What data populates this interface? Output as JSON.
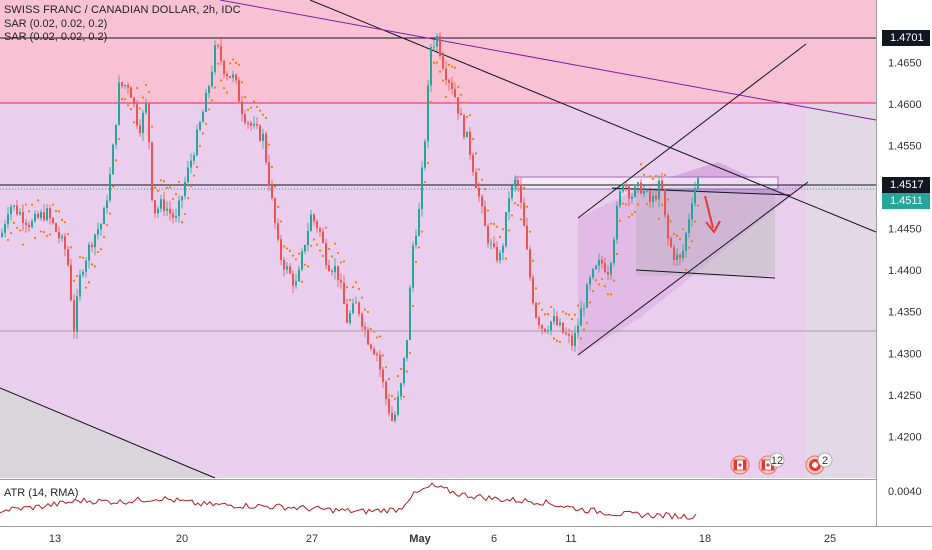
{
  "header": {
    "title": "SWISS FRANC / CANADIAN DOLLAR, 2h, IDC",
    "indicators": [
      "SAR (0.02, 0.02, 0.2)",
      "SAR (0.02, 0.02, 0.2)"
    ]
  },
  "atr": {
    "label": "ATR (14, RMA)",
    "axis_label": "0.0040",
    "color": "#b71c1c"
  },
  "price_badges": [
    {
      "text": "1.4701",
      "bg": "#131722",
      "fg": "#ffffff"
    },
    {
      "text": "1.4517",
      "bg": "#131722",
      "fg": "#ffffff"
    },
    {
      "text": "1.4511",
      "bg": "#26a69a",
      "fg": "#ffffff"
    }
  ],
  "chart_data": {
    "type": "candlestick",
    "title": "SWISS FRANC / CANADIAN DOLLAR, 2h, IDC",
    "y_ticks": [
      "1.4650",
      "1.4600",
      "1.4550",
      "1.4450",
      "1.4400",
      "1.4350",
      "1.4300",
      "1.4250",
      "1.4200"
    ],
    "x_ticks": [
      "13",
      "20",
      "27",
      "May",
      "6",
      "11",
      "18",
      "25"
    ],
    "ylim": [
      1.415,
      1.4725
    ],
    "colors": {
      "up": "#26a69a",
      "down": "#ef5350",
      "sar": "#f57c00",
      "zone_pink": "#f48fb1",
      "zone_purple": "#ce93d8",
      "drawing": "#131722"
    },
    "annotations": [
      "Horizontal line 1.4701",
      "Horizontal line 1.4517",
      "Rising channel",
      "Descending trendlines",
      "Red down arrow",
      "Resistance rectangle"
    ],
    "event_badges": [
      {
        "label": "12"
      },
      {
        "label": "2"
      }
    ],
    "price_path": [
      {
        "x": 0,
        "y": 1.444
      },
      {
        "x": 8,
        "y": 1.448
      },
      {
        "x": 18,
        "y": 1.447
      },
      {
        "x": 30,
        "y": 1.4455
      },
      {
        "x": 45,
        "y": 1.447
      },
      {
        "x": 58,
        "y": 1.444
      },
      {
        "x": 66,
        "y": 1.442
      },
      {
        "x": 73,
        "y": 1.433
      },
      {
        "x": 80,
        "y": 1.44
      },
      {
        "x": 92,
        "y": 1.444
      },
      {
        "x": 102,
        "y": 1.446
      },
      {
        "x": 110,
        "y": 1.452
      },
      {
        "x": 118,
        "y": 1.462
      },
      {
        "x": 128,
        "y": 1.4625
      },
      {
        "x": 138,
        "y": 1.457
      },
      {
        "x": 146,
        "y": 1.46
      },
      {
        "x": 152,
        "y": 1.447
      },
      {
        "x": 162,
        "y": 1.448
      },
      {
        "x": 175,
        "y": 1.446
      },
      {
        "x": 185,
        "y": 1.451
      },
      {
        "x": 196,
        "y": 1.456
      },
      {
        "x": 206,
        "y": 1.461
      },
      {
        "x": 215,
        "y": 1.467
      },
      {
        "x": 224,
        "y": 1.464
      },
      {
        "x": 233,
        "y": 1.463
      },
      {
        "x": 242,
        "y": 1.459
      },
      {
        "x": 252,
        "y": 1.457
      },
      {
        "x": 262,
        "y": 1.456
      },
      {
        "x": 270,
        "y": 1.449
      },
      {
        "x": 278,
        "y": 1.442
      },
      {
        "x": 286,
        "y": 1.44
      },
      {
        "x": 296,
        "y": 1.438
      },
      {
        "x": 303,
        "y": 1.443
      },
      {
        "x": 310,
        "y": 1.4465
      },
      {
        "x": 318,
        "y": 1.445
      },
      {
        "x": 326,
        "y": 1.441
      },
      {
        "x": 336,
        "y": 1.44
      },
      {
        "x": 346,
        "y": 1.434
      },
      {
        "x": 356,
        "y": 1.436
      },
      {
        "x": 366,
        "y": 1.432
      },
      {
        "x": 376,
        "y": 1.43
      },
      {
        "x": 384,
        "y": 1.425
      },
      {
        "x": 392,
        "y": 1.4215
      },
      {
        "x": 400,
        "y": 1.426
      },
      {
        "x": 406,
        "y": 1.432
      },
      {
        "x": 412,
        "y": 1.443
      },
      {
        "x": 418,
        "y": 1.447
      },
      {
        "x": 424,
        "y": 1.456
      },
      {
        "x": 430,
        "y": 1.467
      },
      {
        "x": 436,
        "y": 1.468
      },
      {
        "x": 444,
        "y": 1.464
      },
      {
        "x": 452,
        "y": 1.462
      },
      {
        "x": 460,
        "y": 1.458
      },
      {
        "x": 468,
        "y": 1.455
      },
      {
        "x": 476,
        "y": 1.45
      },
      {
        "x": 484,
        "y": 1.445
      },
      {
        "x": 492,
        "y": 1.442
      },
      {
        "x": 500,
        "y": 1.4415
      },
      {
        "x": 508,
        "y": 1.449
      },
      {
        "x": 516,
        "y": 1.451
      },
      {
        "x": 522,
        "y": 1.446
      },
      {
        "x": 528,
        "y": 1.44
      },
      {
        "x": 534,
        "y": 1.435
      },
      {
        "x": 542,
        "y": 1.433
      },
      {
        "x": 552,
        "y": 1.434
      },
      {
        "x": 562,
        "y": 1.4325
      },
      {
        "x": 572,
        "y": 1.431
      },
      {
        "x": 580,
        "y": 1.435
      },
      {
        "x": 590,
        "y": 1.439
      },
      {
        "x": 600,
        "y": 1.441
      },
      {
        "x": 608,
        "y": 1.44
      },
      {
        "x": 616,
        "y": 1.447
      },
      {
        "x": 622,
        "y": 1.451
      },
      {
        "x": 630,
        "y": 1.449
      },
      {
        "x": 640,
        "y": 1.45
      },
      {
        "x": 650,
        "y": 1.448
      },
      {
        "x": 660,
        "y": 1.4505
      },
      {
        "x": 666,
        "y": 1.444
      },
      {
        "x": 672,
        "y": 1.442
      },
      {
        "x": 680,
        "y": 1.441
      },
      {
        "x": 686,
        "y": 1.445
      },
      {
        "x": 692,
        "y": 1.4495
      },
      {
        "x": 698,
        "y": 1.4511
      }
    ],
    "atr_path": [
      {
        "x": 0,
        "y": 0.0023
      },
      {
        "x": 40,
        "y": 0.0026
      },
      {
        "x": 80,
        "y": 0.0031
      },
      {
        "x": 120,
        "y": 0.003
      },
      {
        "x": 160,
        "y": 0.0033
      },
      {
        "x": 200,
        "y": 0.0028
      },
      {
        "x": 240,
        "y": 0.0027
      },
      {
        "x": 280,
        "y": 0.0026
      },
      {
        "x": 320,
        "y": 0.0024
      },
      {
        "x": 360,
        "y": 0.0022
      },
      {
        "x": 400,
        "y": 0.0024
      },
      {
        "x": 410,
        "y": 0.0034
      },
      {
        "x": 432,
        "y": 0.0043
      },
      {
        "x": 460,
        "y": 0.0036
      },
      {
        "x": 500,
        "y": 0.0032
      },
      {
        "x": 540,
        "y": 0.003
      },
      {
        "x": 580,
        "y": 0.0024
      },
      {
        "x": 620,
        "y": 0.002
      },
      {
        "x": 660,
        "y": 0.0019
      },
      {
        "x": 698,
        "y": 0.0018
      }
    ]
  }
}
